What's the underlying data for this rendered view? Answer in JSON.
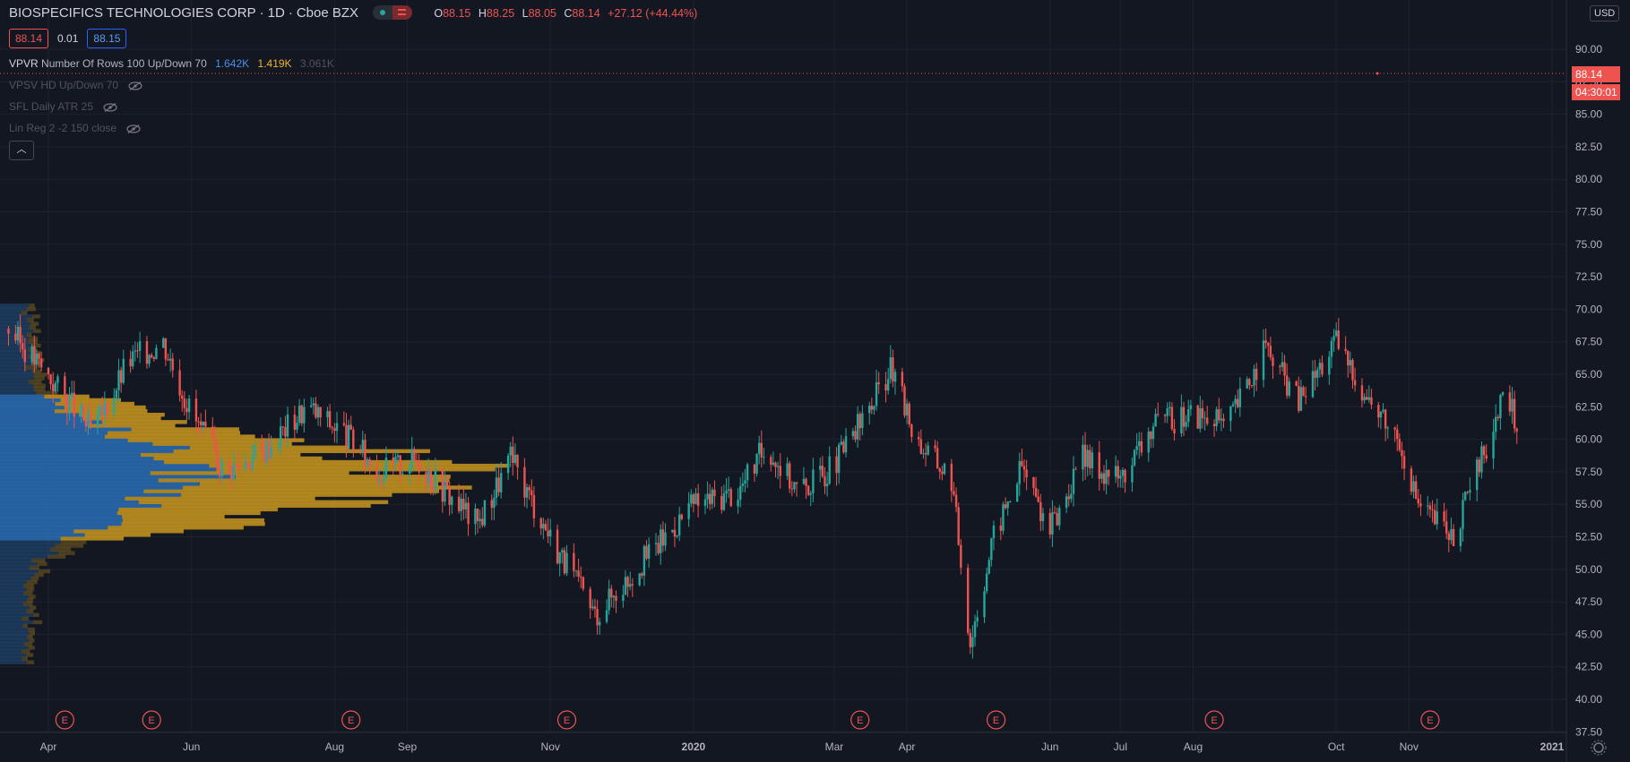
{
  "header": {
    "symbol": "BIOSPECIFICS TECHNOLOGIES CORP",
    "interval": "1D",
    "exchange": "Cboe BZX",
    "ohlc": {
      "o_label": "O",
      "o": "88.15",
      "h_label": "H",
      "h": "88.25",
      "l_label": "L",
      "l": "88.05",
      "c_label": "C",
      "c": "88.14",
      "change": "+27.12 (+44.44%)"
    }
  },
  "trade": {
    "sell": "88.14",
    "spread": "0.01",
    "buy": "88.15"
  },
  "indicators": [
    {
      "name": "VPVR",
      "params": "Number Of Rows 100 Up/Down 70",
      "v1": "1.642K",
      "v2": "1.419K",
      "v3": "3.061K"
    },
    {
      "name": "VPSV HD Up/Down 70"
    },
    {
      "name": "SFL Daily ATR 25"
    },
    {
      "name": "Lin Reg 2 -2 150 close"
    }
  ],
  "price_axis": {
    "currency": "USD",
    "ticks": [
      "90.00",
      "87.50",
      "85.00",
      "82.50",
      "80.00",
      "77.50",
      "75.00",
      "72.50",
      "70.00",
      "67.50",
      "65.00",
      "62.50",
      "60.00",
      "57.50",
      "55.00",
      "52.50",
      "50.00",
      "47.50",
      "45.00",
      "42.50",
      "40.00",
      "37.50"
    ],
    "last_price": "88.14",
    "countdown": "04:30:01"
  },
  "time_axis": {
    "labels": [
      "Apr",
      "Jun",
      "Aug",
      "Sep",
      "Nov",
      "2020",
      "Mar",
      "Apr",
      "Jun",
      "Jul",
      "Aug",
      "Oct",
      "Nov",
      "2021"
    ]
  },
  "earnings_marker": "E",
  "colors": {
    "up": "#26a69a",
    "down": "#ef5350",
    "bg": "#131722",
    "vp_up": "#2a6db5",
    "vp_down": "#c9961f"
  },
  "chart_data": {
    "type": "candlestick",
    "title": "BIOSPECIFICS TECHNOLOGIES CORP",
    "ylim": [
      37.5,
      90
    ],
    "last_price": 88.14,
    "close_path": [
      {
        "x": "2019-03-15",
        "y": 68.5
      },
      {
        "x": "2019-04-05",
        "y": 64.0
      },
      {
        "x": "2019-04-20",
        "y": 60.5
      },
      {
        "x": "2019-05-05",
        "y": 66.0
      },
      {
        "x": "2019-05-20",
        "y": 67.5
      },
      {
        "x": "2019-06-01",
        "y": 62.0
      },
      {
        "x": "2019-06-15",
        "y": 57.5
      },
      {
        "x": "2019-07-01",
        "y": 59.0
      },
      {
        "x": "2019-07-20",
        "y": 62.5
      },
      {
        "x": "2019-08-05",
        "y": 60.5
      },
      {
        "x": "2019-08-20",
        "y": 57.5
      },
      {
        "x": "2019-09-05",
        "y": 58.5
      },
      {
        "x": "2019-09-20",
        "y": 55.5
      },
      {
        "x": "2019-10-01",
        "y": 53.5
      },
      {
        "x": "2019-10-15",
        "y": 58.5
      },
      {
        "x": "2019-11-01",
        "y": 52.5
      },
      {
        "x": "2019-11-20",
        "y": 46.5
      },
      {
        "x": "2019-12-10",
        "y": 50.5
      },
      {
        "x": "2020-01-01",
        "y": 55.0
      },
      {
        "x": "2020-01-20",
        "y": 56.0
      },
      {
        "x": "2020-02-01",
        "y": 59.5
      },
      {
        "x": "2020-02-15",
        "y": 56.0
      },
      {
        "x": "2020-03-01",
        "y": 58.0
      },
      {
        "x": "2020-03-15",
        "y": 62.0
      },
      {
        "x": "2020-03-25",
        "y": 65.5
      },
      {
        "x": "2020-04-05",
        "y": 60.0
      },
      {
        "x": "2020-04-20",
        "y": 57.0
      },
      {
        "x": "2020-04-28",
        "y": 44.5
      },
      {
        "x": "2020-05-08",
        "y": 52.5
      },
      {
        "x": "2020-05-20",
        "y": 58.0
      },
      {
        "x": "2020-06-01",
        "y": 53.0
      },
      {
        "x": "2020-06-15",
        "y": 58.5
      },
      {
        "x": "2020-07-01",
        "y": 57.0
      },
      {
        "x": "2020-07-15",
        "y": 61.0
      },
      {
        "x": "2020-08-01",
        "y": 62.0
      },
      {
        "x": "2020-08-15",
        "y": 61.0
      },
      {
        "x": "2020-09-01",
        "y": 67.0
      },
      {
        "x": "2020-09-15",
        "y": 63.0
      },
      {
        "x": "2020-10-01",
        "y": 67.5
      },
      {
        "x": "2020-10-15",
        "y": 63.0
      },
      {
        "x": "2020-10-28",
        "y": 60.0
      },
      {
        "x": "2020-11-05",
        "y": 55.0
      },
      {
        "x": "2020-11-20",
        "y": 52.5
      },
      {
        "x": "2020-12-05",
        "y": 60.0
      },
      {
        "x": "2020-12-12",
        "y": 63.5
      },
      {
        "x": "2020-12-17",
        "y": 61.0
      }
    ],
    "earnings_dates": [
      "2019-04-08",
      "2019-05-15",
      "2019-08-08",
      "2019-11-08",
      "2020-03-12",
      "2020-05-09",
      "2020-08-10",
      "2020-11-10"
    ]
  }
}
